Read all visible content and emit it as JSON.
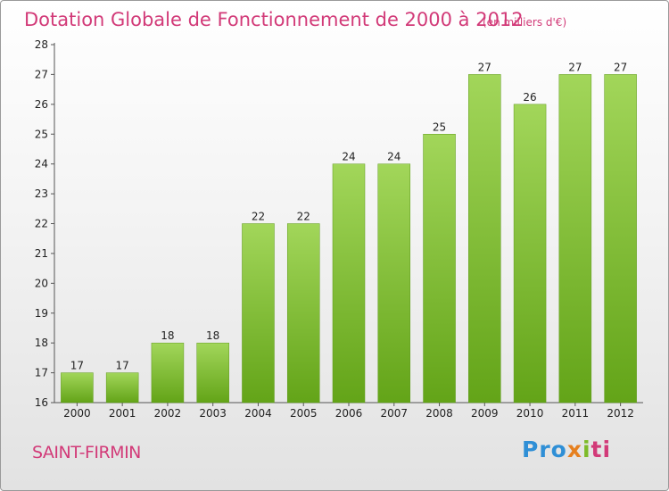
{
  "chart_data": {
    "type": "bar",
    "title": "Dotation Globale de Fonctionnement de 2000 à 2012",
    "subtitle": "(en milliers d'€)",
    "categories": [
      "2000",
      "2001",
      "2002",
      "2003",
      "2004",
      "2005",
      "2006",
      "2007",
      "2008",
      "2009",
      "2010",
      "2011",
      "2012"
    ],
    "values": [
      17,
      17,
      18,
      18,
      22,
      22,
      24,
      24,
      25,
      27,
      26,
      27,
      27
    ],
    "ylim": [
      16,
      28
    ],
    "yticks": [
      16,
      17,
      18,
      19,
      20,
      21,
      22,
      23,
      24,
      25,
      26,
      27,
      28
    ],
    "xlabel": "",
    "ylabel": "",
    "grid": false,
    "bar_color": "#7fbd2e"
  },
  "footer": {
    "city": "SAINT-FIRMIN",
    "logo": [
      "Pro",
      "x",
      "i",
      "ti"
    ]
  }
}
